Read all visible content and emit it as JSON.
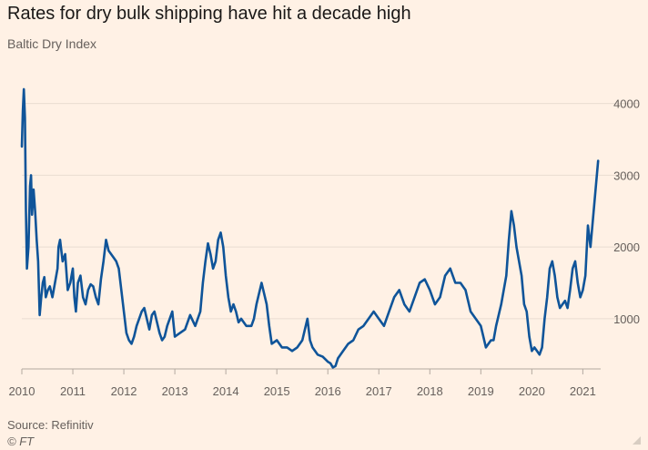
{
  "header": {
    "title": "Rates for dry bulk shipping have hit a decade high",
    "subtitle": "Baltic Dry Index"
  },
  "footer": {
    "source": "Source: Refinitiv",
    "credit": "© FT"
  },
  "colors": {
    "background": "#fff1e5",
    "line": "#0f5499",
    "grid": "#e9ddd2",
    "axis_text": "#66605c"
  },
  "chart_data": {
    "type": "line",
    "title": "Rates for dry bulk shipping have hit a decade high",
    "subtitle": "Baltic Dry Index",
    "xlabel": "",
    "ylabel": "",
    "x_ticks": [
      "2010",
      "2011",
      "2012",
      "2013",
      "2014",
      "2015",
      "2016",
      "2017",
      "2018",
      "2019",
      "2020",
      "2021"
    ],
    "y_ticks": [
      1000,
      2000,
      3000,
      4000
    ],
    "ylim": [
      300,
      4300
    ],
    "xlim": [
      2010.0,
      2021.35
    ],
    "grid": true,
    "y_axis_side": "right",
    "series": [
      {
        "x": [
          2010.0,
          2010.02,
          2010.04,
          2010.06,
          2010.08,
          2010.1,
          2010.13,
          2010.16,
          2010.18,
          2010.2,
          2010.23,
          2010.26,
          2010.29,
          2010.32,
          2010.35,
          2010.38,
          2010.41,
          2010.44,
          2010.47,
          2010.51,
          2010.55,
          2010.6,
          2010.65,
          2010.7,
          2010.72,
          2010.75,
          2010.8,
          2010.85,
          2010.9,
          2010.95,
          2011.0,
          2011.03,
          2011.06,
          2011.1,
          2011.15,
          2011.2,
          2011.25,
          2011.3,
          2011.35,
          2011.4,
          2011.45,
          2011.5,
          2011.55,
          2011.6,
          2011.65,
          2011.7,
          2011.75,
          2011.8,
          2011.85,
          2011.9,
          2011.95,
          2012.0,
          2012.05,
          2012.1,
          2012.15,
          2012.2,
          2012.25,
          2012.3,
          2012.35,
          2012.4,
          2012.45,
          2012.5,
          2012.55,
          2012.6,
          2012.65,
          2012.7,
          2012.75,
          2012.8,
          2012.85,
          2012.9,
          2012.95,
          2013.0,
          2013.1,
          2013.2,
          2013.3,
          2013.4,
          2013.5,
          2013.55,
          2013.6,
          2013.65,
          2013.7,
          2013.75,
          2013.8,
          2013.85,
          2013.9,
          2013.95,
          2014.0,
          2014.05,
          2014.1,
          2014.15,
          2014.2,
          2014.25,
          2014.3,
          2014.4,
          2014.5,
          2014.55,
          2014.6,
          2014.7,
          2014.8,
          2014.85,
          2014.9,
          2015.0,
          2015.1,
          2015.2,
          2015.3,
          2015.4,
          2015.5,
          2015.55,
          2015.6,
          2015.65,
          2015.7,
          2015.8,
          2015.9,
          2016.0,
          2016.05,
          2016.1,
          2016.15,
          2016.2,
          2016.3,
          2016.4,
          2016.5,
          2016.6,
          2016.7,
          2016.8,
          2016.9,
          2017.0,
          2017.1,
          2017.2,
          2017.3,
          2017.4,
          2017.5,
          2017.6,
          2017.7,
          2017.8,
          2017.9,
          2018.0,
          2018.1,
          2018.2,
          2018.3,
          2018.4,
          2018.5,
          2018.6,
          2018.7,
          2018.8,
          2018.9,
          2019.0,
          2019.05,
          2019.1,
          2019.15,
          2019.2,
          2019.25,
          2019.3,
          2019.4,
          2019.5,
          2019.55,
          2019.6,
          2019.65,
          2019.7,
          2019.75,
          2019.8,
          2019.85,
          2019.9,
          2019.95,
          2020.0,
          2020.05,
          2020.1,
          2020.15,
          2020.2,
          2020.25,
          2020.3,
          2020.35,
          2020.4,
          2020.45,
          2020.5,
          2020.55,
          2020.6,
          2020.65,
          2020.7,
          2020.75,
          2020.8,
          2020.85,
          2020.9,
          2020.95,
          2021.0,
          2021.05,
          2021.1,
          2021.15,
          2021.2,
          2021.25,
          2021.3
        ],
        "values": [
          3400,
          3900,
          4200,
          3800,
          2500,
          1700,
          2000,
          2850,
          3000,
          2450,
          2800,
          2500,
          2100,
          1800,
          1050,
          1300,
          1500,
          1580,
          1300,
          1400,
          1450,
          1300,
          1500,
          1700,
          2000,
          2100,
          1800,
          1900,
          1400,
          1500,
          1700,
          1300,
          1100,
          1500,
          1600,
          1300,
          1200,
          1400,
          1480,
          1450,
          1300,
          1200,
          1550,
          1800,
          2100,
          1950,
          1900,
          1850,
          1800,
          1700,
          1400,
          1100,
          800,
          700,
          650,
          750,
          900,
          1000,
          1100,
          1150,
          1000,
          850,
          1050,
          1100,
          950,
          800,
          700,
          750,
          900,
          1000,
          1100,
          750,
          800,
          850,
          1050,
          900,
          1100,
          1500,
          1800,
          2050,
          1900,
          1700,
          1800,
          2100,
          2200,
          2000,
          1600,
          1300,
          1100,
          1200,
          1100,
          950,
          1000,
          900,
          900,
          1000,
          1200,
          1500,
          1200,
          900,
          650,
          700,
          600,
          600,
          550,
          600,
          700,
          850,
          1000,
          700,
          600,
          500,
          470,
          400,
          380,
          320,
          340,
          450,
          550,
          650,
          700,
          850,
          900,
          1000,
          1100,
          1000,
          900,
          1100,
          1300,
          1400,
          1200,
          1100,
          1300,
          1500,
          1550,
          1400,
          1200,
          1300,
          1600,
          1700,
          1500,
          1500,
          1400,
          1100,
          1000,
          900,
          750,
          600,
          650,
          700,
          700,
          900,
          1200,
          1600,
          2100,
          2500,
          2300,
          2000,
          1800,
          1600,
          1200,
          1100,
          750,
          550,
          600,
          550,
          500,
          600,
          1000,
          1300,
          1700,
          1800,
          1600,
          1300,
          1150,
          1200,
          1250,
          1150,
          1400,
          1700,
          1800,
          1500,
          1300,
          1400,
          1600,
          2300,
          2000,
          2400,
          2800,
          3200
        ]
      }
    ]
  }
}
